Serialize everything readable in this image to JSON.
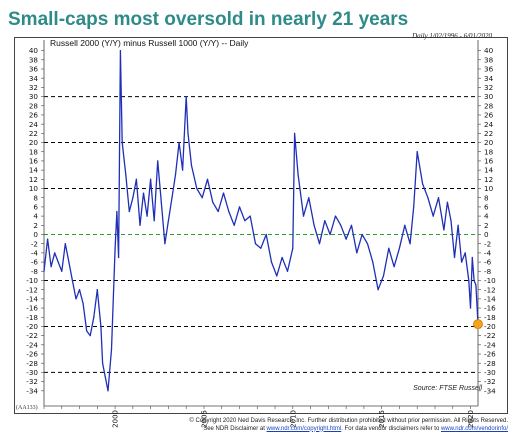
{
  "header": {
    "title": "Small-caps most oversold in nearly 21 years",
    "series_label": "Russell 2000 (Y/Y) minus Russell 1000 (Y/Y) -- Daily",
    "date_range": "Daily 1/02/1996 - 6/01/2020",
    "source": "Source: FTSE Russell",
    "chart_id": "(AA133)"
  },
  "footer": {
    "line1": "© Copyright 2020 Ned Davis Research, Inc. Further distribution prohibited without prior permission. All Rights Reserved.",
    "line2_a": "See NDR Disclaimer at",
    "line2_link1": "www.ndr.com/copyright.html",
    "line2_b": ". For data vendor disclaimers refer to",
    "line2_link2": "www.ndr.com/vendorinfo/"
  },
  "chart_data": {
    "type": "line",
    "title": "Small-caps most oversold in nearly 21 years",
    "ylabel": "",
    "xlabel": "",
    "ylim": [
      -36,
      41
    ],
    "xlim": [
      1996.0,
      2020.42
    ],
    "yticks": [
      40,
      38,
      36,
      34,
      32,
      30,
      28,
      26,
      24,
      22,
      20,
      18,
      16,
      14,
      12,
      10,
      8,
      6,
      4,
      2,
      0,
      -2,
      -4,
      -6,
      -8,
      -10,
      -12,
      -14,
      -16,
      -18,
      -20,
      -22,
      -24,
      -26,
      -28,
      -30,
      -32,
      -34
    ],
    "x_tick_labels": [
      {
        "x": 2000,
        "label": "2000"
      },
      {
        "x": 2005,
        "label": "2005"
      },
      {
        "x": 2010,
        "label": "2010"
      },
      {
        "x": 2015,
        "label": "2015"
      },
      {
        "x": 2020,
        "label": "2020"
      }
    ],
    "reference_lines": [
      {
        "y": 30,
        "style": "dashed",
        "color": "#000000"
      },
      {
        "y": 20,
        "style": "dashed",
        "color": "#000000"
      },
      {
        "y": 10,
        "style": "dashed",
        "color": "#000000"
      },
      {
        "y": 0,
        "style": "dashed",
        "color": "#2a9d2a"
      },
      {
        "y": -10,
        "style": "dashed",
        "color": "#000000"
      },
      {
        "y": -20,
        "style": "dashed",
        "color": "#000000"
      },
      {
        "y": -30,
        "style": "dashed",
        "color": "#000000"
      }
    ],
    "series": [
      {
        "color": "#1f2fb8",
        "x": [
          1996.0,
          1996.2,
          1996.4,
          1996.6,
          1996.8,
          1997.0,
          1997.2,
          1997.4,
          1997.6,
          1997.8,
          1998.0,
          1998.2,
          1998.4,
          1998.6,
          1998.8,
          1999.0,
          1999.2,
          1999.3,
          1999.45,
          1999.6,
          1999.8,
          2000.0,
          2000.1,
          2000.2,
          2000.3,
          2000.4,
          2000.6,
          2000.8,
          2001.0,
          2001.2,
          2001.4,
          2001.6,
          2001.8,
          2002.0,
          2002.2,
          2002.4,
          2002.6,
          2002.8,
          2003.0,
          2003.2,
          2003.4,
          2003.6,
          2003.8,
          2004.0,
          2004.1,
          2004.3,
          2004.6,
          2004.9,
          2005.2,
          2005.5,
          2005.8,
          2006.1,
          2006.4,
          2006.7,
          2007.0,
          2007.3,
          2007.6,
          2007.9,
          2008.2,
          2008.5,
          2008.8,
          2009.1,
          2009.4,
          2009.7,
          2010.0,
          2010.1,
          2010.3,
          2010.6,
          2010.9,
          2011.2,
          2011.5,
          2011.8,
          2012.1,
          2012.4,
          2012.7,
          2013.0,
          2013.3,
          2013.6,
          2013.9,
          2014.2,
          2014.5,
          2014.8,
          2015.1,
          2015.4,
          2015.7,
          2016.0,
          2016.3,
          2016.6,
          2016.8,
          2017.0,
          2017.3,
          2017.6,
          2017.9,
          2018.2,
          2018.5,
          2018.7,
          2018.9,
          2019.1,
          2019.3,
          2019.5,
          2019.7,
          2019.9,
          2020.0,
          2020.1,
          2020.2,
          2020.3,
          2020.42
        ],
        "y": [
          -8,
          -1,
          -7,
          -4,
          -6,
          -8,
          -2,
          -6,
          -10,
          -14,
          -12,
          -15,
          -21,
          -22,
          -18,
          -12,
          -20,
          -28,
          -31,
          -34,
          -25,
          -3,
          5,
          -5,
          40,
          20,
          13,
          5,
          8,
          12,
          2,
          9,
          4,
          12,
          3,
          16,
          7,
          -2,
          3,
          8,
          13,
          20,
          14,
          30,
          22,
          15,
          10,
          8,
          12,
          7,
          5,
          9,
          5,
          2,
          6,
          3,
          4,
          -2,
          -3,
          0,
          -6,
          -9,
          -5,
          -8,
          -3,
          22,
          13,
          4,
          8,
          2,
          -2,
          3,
          0,
          4,
          2,
          -1,
          2,
          -4,
          0,
          -2,
          -6,
          -12,
          -9,
          -3,
          -7,
          -3,
          2,
          -2,
          6,
          18,
          11,
          8,
          4,
          8,
          1,
          7,
          3,
          -5,
          2,
          -6,
          -4,
          -10,
          -16,
          -5,
          -10,
          -11,
          -19.5
        ]
      }
    ],
    "highlight_point": {
      "x": 2020.42,
      "y": -19.5,
      "color": "#f5a31a"
    }
  }
}
